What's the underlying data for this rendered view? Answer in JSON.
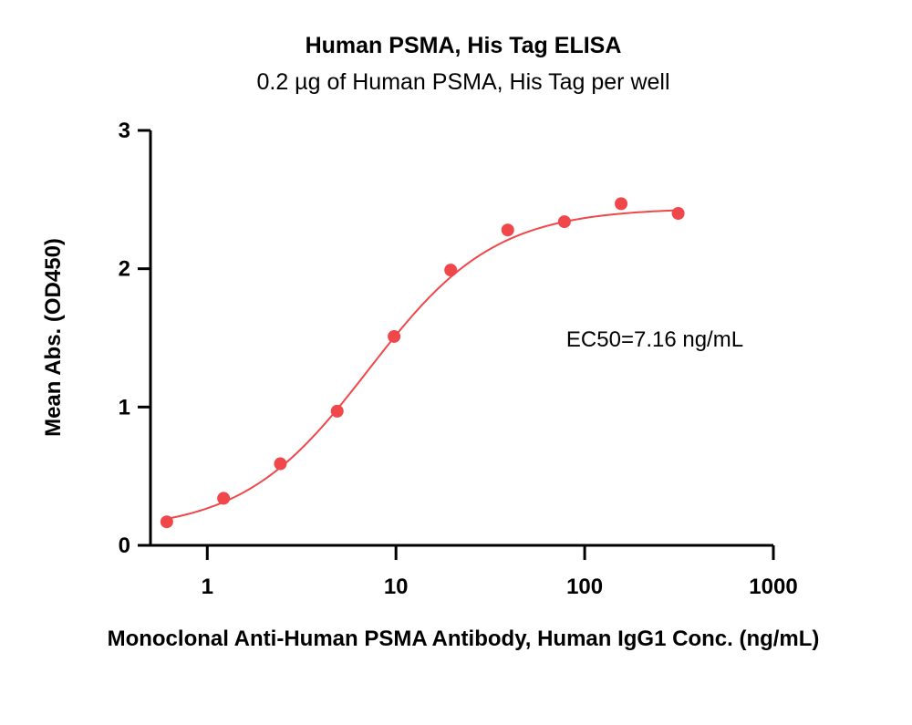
{
  "chart_data": {
    "type": "scatter",
    "title": "Human PSMA, His Tag ELISA",
    "subtitle": "0.2 µg of Human PSMA, His Tag per well",
    "xlabel": "Monoclonal Anti-Human PSMA Antibody, Human IgG1 Conc. (ng/mL)",
    "ylabel": "Mean Abs. (OD450)",
    "xscale": "log",
    "xlim": [
      0.5,
      1000
    ],
    "ylim": [
      0,
      3
    ],
    "xticks": [
      "1",
      "10",
      "100",
      "1000"
    ],
    "yticks": [
      "0",
      "1",
      "2",
      "3"
    ],
    "grid": false,
    "annotation": "EC50=7.16 ng/mL",
    "series": [
      {
        "color": "#f0474b",
        "points": [
          {
            "x": 0.61,
            "y": 0.17
          },
          {
            "x": 1.22,
            "y": 0.34
          },
          {
            "x": 2.44,
            "y": 0.59
          },
          {
            "x": 4.88,
            "y": 0.97
          },
          {
            "x": 9.77,
            "y": 1.51
          },
          {
            "x": 19.5,
            "y": 1.99
          },
          {
            "x": 39.1,
            "y": 2.28
          },
          {
            "x": 78.1,
            "y": 2.34
          },
          {
            "x": 156,
            "y": 2.47
          },
          {
            "x": 313,
            "y": 2.4
          }
        ],
        "fit": {
          "bottom": 0.1,
          "top": 2.44,
          "ec50": 7.16,
          "hill": 1.3,
          "x_range": [
            0.61,
            313
          ]
        }
      }
    ]
  }
}
